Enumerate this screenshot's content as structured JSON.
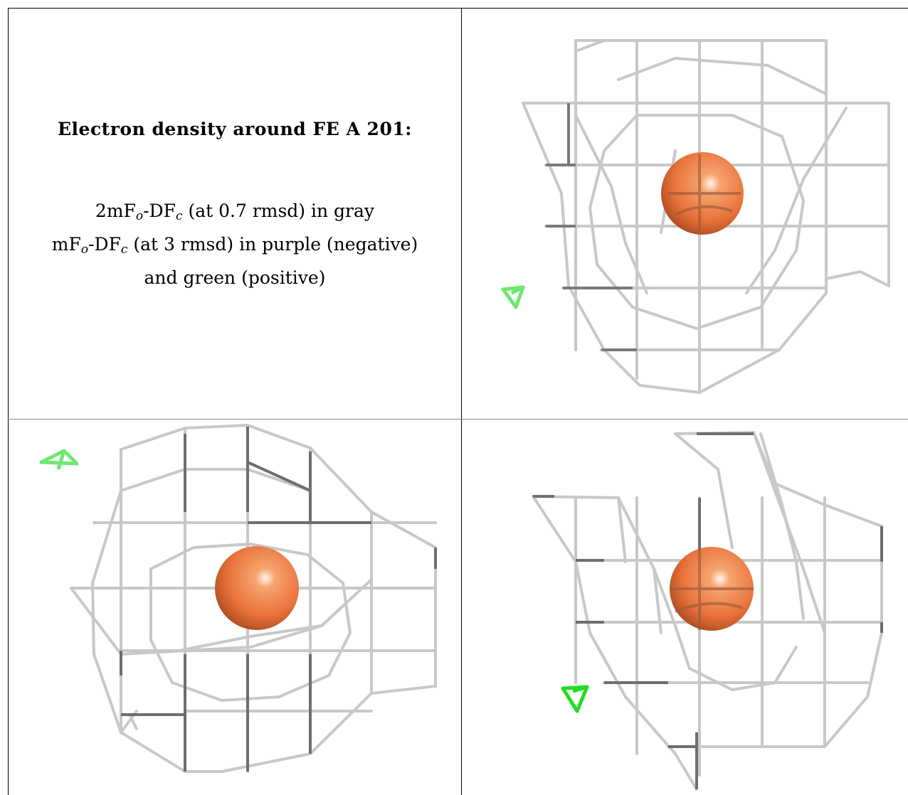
{
  "caption": {
    "title": "Electron density around FE A 201:",
    "line1": {
      "a": "2mF",
      "o": "o",
      "b": "-DF",
      "c": "c",
      "rest": " (at 0.7 rmsd) in gray"
    },
    "line2": {
      "a": "mF",
      "o": "o",
      "b": "-DF",
      "c": "c",
      "rest": " (at 3 rmsd) in purple (negative)"
    },
    "line3": "and green (positive)"
  },
  "colors": {
    "mesh_light": "#c8c8c8",
    "mesh_dark": "#6e6e6e",
    "atom": "#e8713a",
    "positive_density": "#55e85a",
    "border": "#000000"
  },
  "panels": [
    {
      "id": "view-1",
      "atom": "FE A 201",
      "positive_blob": true
    },
    {
      "id": "view-2",
      "atom": "FE A 201",
      "positive_blob": true
    },
    {
      "id": "view-3",
      "atom": "FE A 201",
      "positive_blob": true
    }
  ]
}
